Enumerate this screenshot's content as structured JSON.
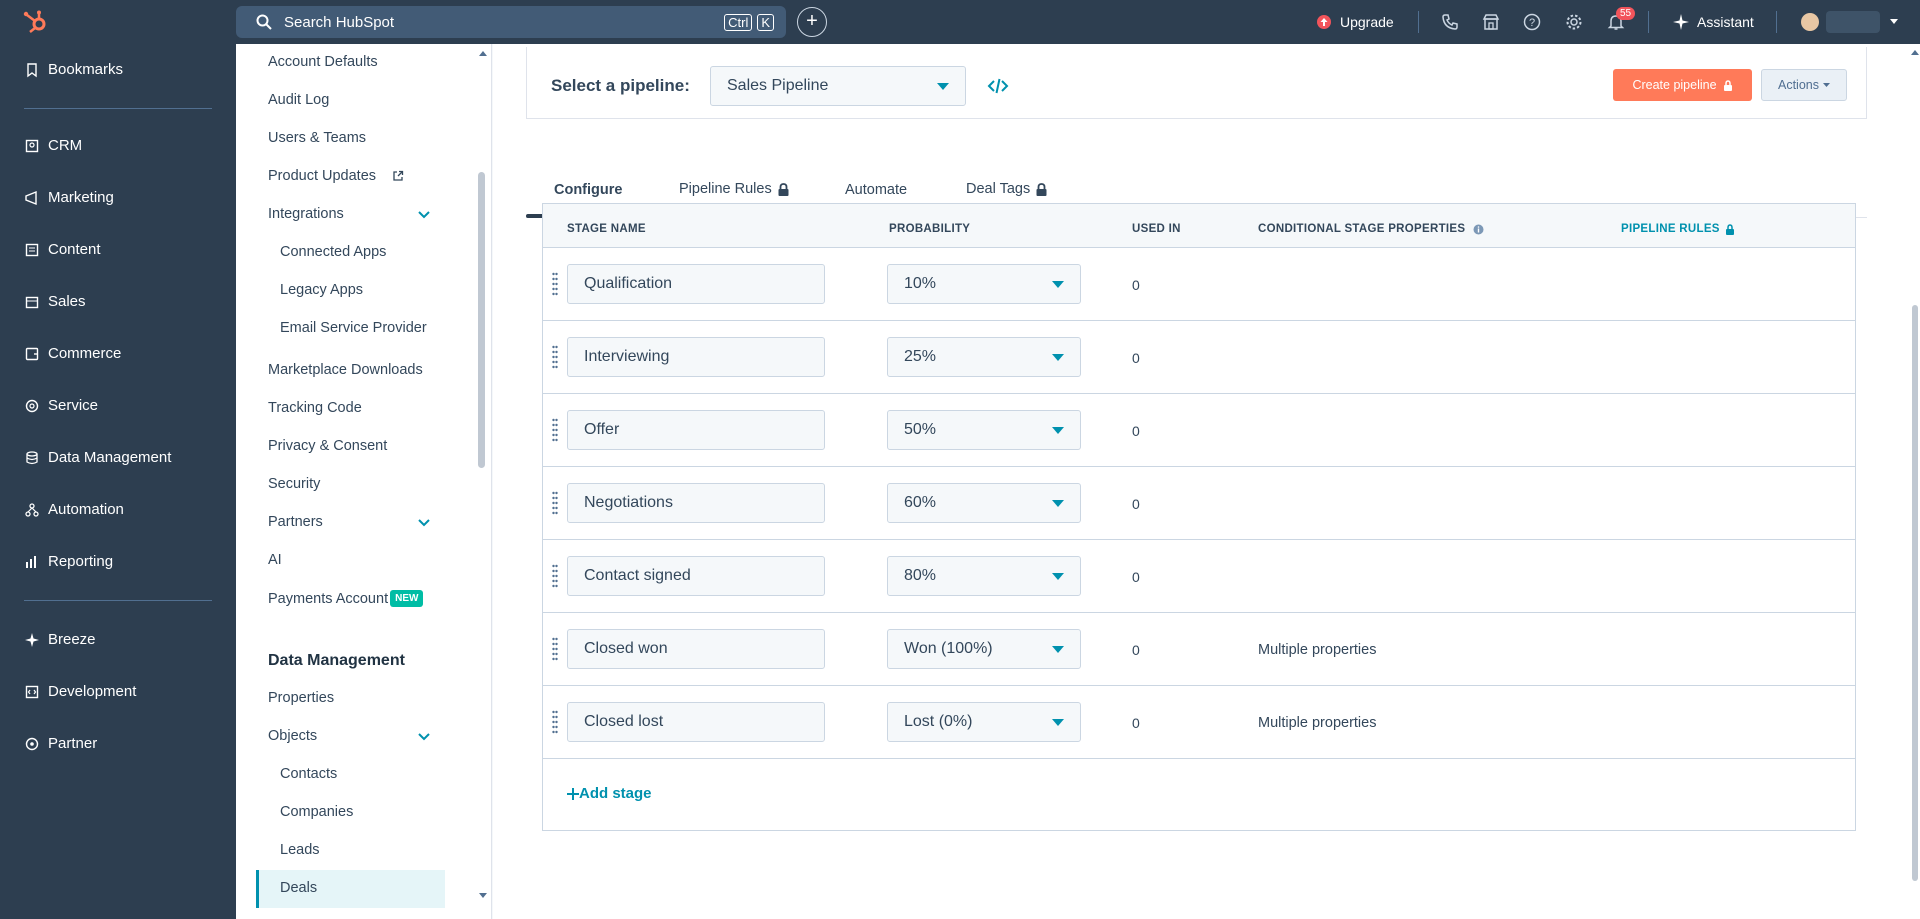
{
  "topbar": {
    "search_placeholder": "Search HubSpot",
    "kbd_ctrl": "Ctrl",
    "kbd_k": "K",
    "upgrade": "Upgrade",
    "assistant": "Assistant",
    "notification_count": "55"
  },
  "leftnav": {
    "items": [
      "Bookmarks",
      "CRM",
      "Marketing",
      "Content",
      "Sales",
      "Commerce",
      "Service",
      "Data Management",
      "Automation",
      "Reporting",
      "Breeze",
      "Development",
      "Partner"
    ]
  },
  "settings": {
    "items": [
      "Account Defaults",
      "Audit Log",
      "Users & Teams",
      "Product Updates",
      "Integrations",
      "Connected Apps",
      "Legacy Apps",
      "Email Service Provider",
      "Marketplace Downloads",
      "Tracking Code",
      "Privacy & Consent",
      "Security",
      "Partners",
      "AI",
      "Payments Account"
    ],
    "new_badge": "NEW",
    "section_title": "Data Management",
    "data_items": [
      "Properties",
      "Objects",
      "Contacts",
      "Companies",
      "Leads",
      "Deals"
    ]
  },
  "pipeline": {
    "label": "Select a pipeline:",
    "selected": "Sales Pipeline",
    "create_button": "Create pipeline",
    "actions_button": "Actions"
  },
  "tabs": [
    "Configure",
    "Pipeline Rules",
    "Automate",
    "Deal Tags"
  ],
  "table": {
    "headers": {
      "stage_name": "STAGE NAME",
      "probability": "PROBABILITY",
      "used_in": "USED IN",
      "conditional": "CONDITIONAL STAGE PROPERTIES",
      "pipeline_rules": "PIPELINE RULES"
    },
    "rows": [
      {
        "stage": "Qualification",
        "probability": "10%",
        "used_in": "0",
        "conditional": ""
      },
      {
        "stage": "Interviewing",
        "probability": "25%",
        "used_in": "0",
        "conditional": ""
      },
      {
        "stage": "Offer",
        "probability": "50%",
        "used_in": "0",
        "conditional": ""
      },
      {
        "stage": "Negotiations",
        "probability": "60%",
        "used_in": "0",
        "conditional": ""
      },
      {
        "stage": "Contact signed",
        "probability": "80%",
        "used_in": "0",
        "conditional": ""
      },
      {
        "stage": "Closed won",
        "probability": "Won (100%)",
        "used_in": "0",
        "conditional": "Multiple properties"
      },
      {
        "stage": "Closed lost",
        "probability": "Lost (0%)",
        "used_in": "0",
        "conditional": "Multiple properties"
      }
    ],
    "add_stage": "Add stage"
  },
  "colors": {
    "nav_bg": "#2d3e50",
    "accent": "#0091ae",
    "primary_button": "#ff7a59",
    "new_badge": "#00bda5"
  }
}
